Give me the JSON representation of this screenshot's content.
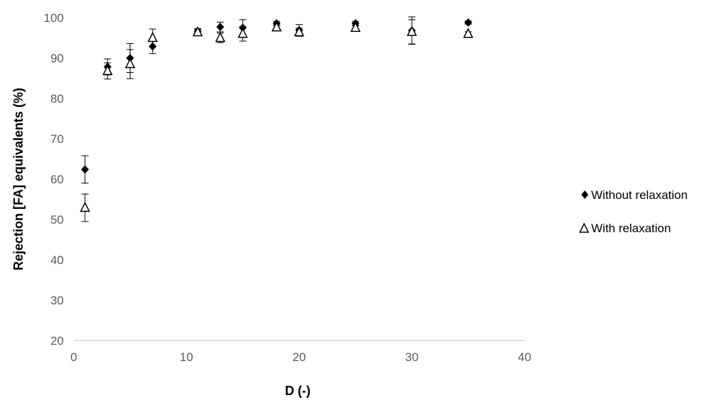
{
  "chart_data": {
    "type": "scatter",
    "xlabel": "D (-)",
    "ylabel": "Rejection [FA] equivalents (%)",
    "xlim": [
      0,
      40
    ],
    "ylim": [
      20,
      100
    ],
    "x_ticks": [
      "0",
      "10",
      "20",
      "30",
      "40"
    ],
    "y_ticks": [
      "20",
      "30",
      "40",
      "50",
      "60",
      "70",
      "80",
      "90",
      "100"
    ],
    "grid": false,
    "legend_position": "right",
    "series": [
      {
        "name": "Without relaxation",
        "marker": "filled-diamond",
        "color": "#000000",
        "points": [
          {
            "x": 1,
            "y": 62.4,
            "err": 3.4
          },
          {
            "x": 3,
            "y": 87.8,
            "err": 2.0
          },
          {
            "x": 5,
            "y": 90.0,
            "err": 3.6
          },
          {
            "x": 7,
            "y": 92.9,
            "err": 1.8
          },
          {
            "x": 11,
            "y": 96.6,
            "err": 0.7
          },
          {
            "x": 13,
            "y": 97.7,
            "err": 1.2
          },
          {
            "x": 15,
            "y": 97.5,
            "err": 2.0
          },
          {
            "x": 18,
            "y": 98.6,
            "err": 0.5
          },
          {
            "x": 20,
            "y": 96.9,
            "err": 1.4
          },
          {
            "x": 25,
            "y": 98.6,
            "err": 0.5
          },
          {
            "x": 30,
            "y": 96.8,
            "err": 3.4
          },
          {
            "x": 35,
            "y": 98.8,
            "err": 0.4
          }
        ]
      },
      {
        "name": "With relaxation",
        "marker": "open-triangle",
        "color": "#000000",
        "points": [
          {
            "x": 1,
            "y": 52.9,
            "err": 3.4
          },
          {
            "x": 3,
            "y": 86.8,
            "err": 2.0
          },
          {
            "x": 5,
            "y": 88.5,
            "err": 3.6
          },
          {
            "x": 7,
            "y": 95.0,
            "err": 2.2
          },
          {
            "x": 11,
            "y": 96.4,
            "err": 0.7
          },
          {
            "x": 13,
            "y": 95.0,
            "err": 1.2
          },
          {
            "x": 15,
            "y": 96.0,
            "err": 1.8
          },
          {
            "x": 18,
            "y": 97.6,
            "err": 0.5
          },
          {
            "x": 20,
            "y": 96.4,
            "err": 1.0
          },
          {
            "x": 25,
            "y": 97.5,
            "err": 0.5
          },
          {
            "x": 30,
            "y": 96.5,
            "err": 3.0
          },
          {
            "x": 35,
            "y": 96.0,
            "err": 0.5
          }
        ]
      }
    ]
  }
}
